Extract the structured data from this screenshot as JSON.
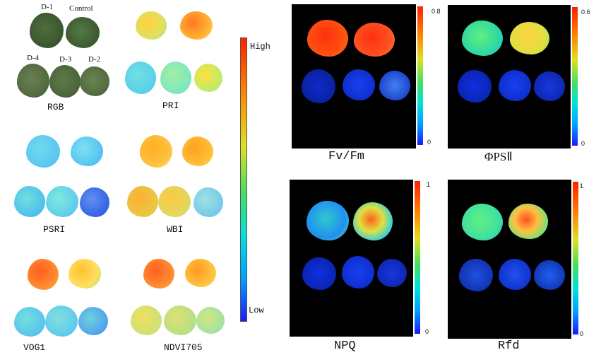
{
  "rgb_panel": {
    "labels": {
      "d1": "D-1",
      "control": "Control",
      "d4": "D-4",
      "d3": "D-3",
      "d2": "D-2"
    },
    "caption": "RGB"
  },
  "index_panels": [
    {
      "caption": "PRI"
    },
    {
      "caption": "PSRI"
    },
    {
      "caption": "WBI"
    },
    {
      "caption": "VOG1"
    },
    {
      "caption": "NDVI705"
    }
  ],
  "main_colorbar": {
    "high_label": "High",
    "low_label": "Low"
  },
  "fluor_panels": [
    {
      "caption": "Fv/Fm",
      "max_label": "0.8",
      "min_label": "0"
    },
    {
      "caption": "ΦPSⅡ",
      "max_label": "0.6",
      "min_label": "0"
    },
    {
      "caption": "NPQ",
      "max_label": "1",
      "min_label": "0"
    },
    {
      "caption": "Rfd",
      "max_label": "1",
      "min_label": "0"
    }
  ],
  "colors": {
    "jet": [
      "#1a1aff",
      "#00a0ff",
      "#00e0e0",
      "#40e060",
      "#e0e020",
      "#ff8000",
      "#ff2000"
    ],
    "rgb_leaf": "#5a7a45"
  }
}
